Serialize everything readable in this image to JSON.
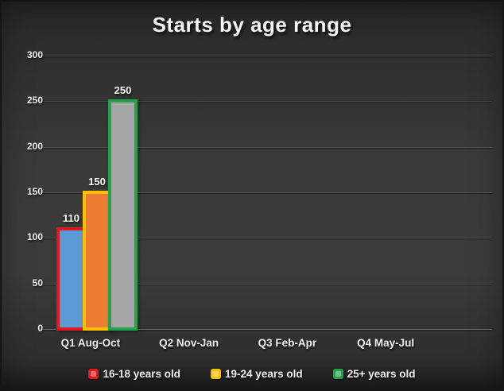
{
  "chart_data": {
    "type": "bar",
    "title": "Starts by age range",
    "categories": [
      "Q1 Aug-Oct",
      "Q2 Nov-Jan",
      "Q3 Feb-Apr",
      "Q4 May-Jul"
    ],
    "series": [
      {
        "name": "16-18 years old",
        "values": [
          110,
          null,
          null,
          null
        ],
        "fill_color": "#5b9bd5",
        "border_color": "#dd1a1f"
      },
      {
        "name": "19-24 years old",
        "values": [
          150,
          null,
          null,
          null
        ],
        "fill_color": "#ed7d31",
        "border_color": "#ffc000"
      },
      {
        "name": "25+ years old",
        "values": [
          250,
          null,
          null,
          null
        ],
        "fill_color": "#a6a6a6",
        "border_color": "#24a14c"
      }
    ],
    "data_labels_shown": [
      "110",
      "150",
      "250"
    ],
    "ylim": [
      0,
      300
    ],
    "yticks": [
      "0",
      "50",
      "100",
      "150",
      "200",
      "250",
      "300"
    ],
    "xlabel": "",
    "ylabel": "",
    "grid": true,
    "legend_position": "bottom",
    "background_color": "#333333",
    "text_color": "#f2f2f2"
  }
}
